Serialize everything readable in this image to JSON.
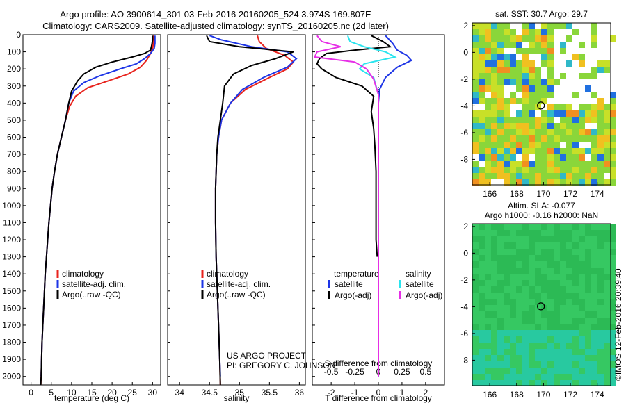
{
  "title_line1": "Argo profile: AO 3900614_301 03-Feb-2016 20160205_524 3.974S 169.807E",
  "title_line2": "Climatology: CARS2009. Satellite-adjusted climatology: synTS_20160205.nc (2d later)",
  "credit_line1": "US ARGO PROJECT",
  "credit_line2": "PI: GREGORY C. JOHNSON",
  "side_label": "©IMOS 12-Feb-2016 20:39:40",
  "colors": {
    "red": "#e8231d",
    "blue": "#1d35e6",
    "black": "#000000",
    "cyan": "#2ae4ee",
    "magenta": "#e62ee6"
  },
  "chart_data": [
    {
      "type": "line",
      "xlabel": "temperature (deg C)",
      "ylabel": "",
      "xlim": [
        -2,
        32
      ],
      "ylim": [
        2050,
        0
      ],
      "xticks": [
        "0",
        "5",
        "10",
        "15",
        "20",
        "25",
        "30"
      ],
      "xtick_values": [
        0,
        5,
        10,
        15,
        20,
        25,
        30
      ],
      "yticks": [
        "0",
        "100",
        "200",
        "300",
        "400",
        "500",
        "600",
        "700",
        "800",
        "900",
        "1000",
        "1100",
        "1200",
        "1300",
        "1400",
        "1500",
        "1600",
        "1700",
        "1800",
        "1900",
        "2000"
      ],
      "ytick_values": [
        0,
        100,
        200,
        300,
        400,
        500,
        600,
        700,
        800,
        900,
        1000,
        1100,
        1200,
        1300,
        1400,
        1500,
        1600,
        1700,
        1800,
        1900,
        2000
      ],
      "legend": [
        "climatology",
        "satellite-adj. clim.",
        "Argo(..raw -QC)"
      ],
      "series": [
        {
          "name": "climatology",
          "color": "red",
          "points": [
            [
              30.3,
              5
            ],
            [
              30.2,
              50
            ],
            [
              30.0,
              80
            ],
            [
              29.5,
              110
            ],
            [
              28.5,
              150
            ],
            [
              27.0,
              190
            ],
            [
              24.0,
              230
            ],
            [
              19.0,
              270
            ],
            [
              14.0,
              310
            ],
            [
              11.0,
              360
            ],
            [
              9.5,
              420
            ],
            [
              8.5,
              500
            ],
            [
              7.5,
              600
            ],
            [
              6.5,
              700
            ],
            [
              5.8,
              800
            ],
            [
              5.2,
              900
            ],
            [
              4.8,
              1000
            ],
            [
              4.4,
              1100
            ],
            [
              4.1,
              1200
            ],
            [
              3.8,
              1300
            ],
            [
              3.5,
              1400
            ],
            [
              3.3,
              1500
            ],
            [
              3.1,
              1600
            ],
            [
              2.9,
              1700
            ],
            [
              2.7,
              1800
            ],
            [
              2.6,
              1900
            ],
            [
              2.5,
              2000
            ],
            [
              2.4,
              2050
            ]
          ]
        },
        {
          "name": "satellite-adj. clim.",
          "color": "blue",
          "points": [
            [
              30.6,
              5
            ],
            [
              30.6,
              50
            ],
            [
              30.4,
              80
            ],
            [
              29.5,
              110
            ],
            [
              28.0,
              140
            ],
            [
              26.0,
              170
            ],
            [
              22.0,
              200
            ],
            [
              17.0,
              240
            ],
            [
              13.0,
              280
            ],
            [
              10.5,
              330
            ],
            [
              9.3,
              400
            ],
            [
              8.5,
              500
            ],
            [
              7.5,
              600
            ],
            [
              6.5,
              700
            ],
            [
              5.8,
              800
            ],
            [
              5.2,
              900
            ],
            [
              4.8,
              1000
            ],
            [
              4.4,
              1100
            ],
            [
              4.1,
              1200
            ],
            [
              3.8,
              1300
            ],
            [
              3.5,
              1400
            ],
            [
              3.3,
              1500
            ],
            [
              3.1,
              1600
            ],
            [
              2.9,
              1700
            ],
            [
              2.7,
              1800
            ],
            [
              2.6,
              1900
            ],
            [
              2.5,
              2000
            ]
          ]
        },
        {
          "name": "Argo(..raw -QC)",
          "color": "black",
          "points": [
            [
              30.0,
              5
            ],
            [
              30.0,
              30
            ],
            [
              29.8,
              60
            ],
            [
              29.5,
              90
            ],
            [
              28.0,
              110
            ],
            [
              25.0,
              130
            ],
            [
              20.0,
              160
            ],
            [
              16.0,
              190
            ],
            [
              13.0,
              230
            ],
            [
              11.5,
              270
            ],
            [
              10.0,
              330
            ],
            [
              9.3,
              400
            ],
            [
              8.5,
              500
            ],
            [
              7.5,
              600
            ],
            [
              6.5,
              700
            ],
            [
              5.8,
              800
            ],
            [
              5.2,
              900
            ],
            [
              4.8,
              1000
            ],
            [
              4.4,
              1100
            ],
            [
              4.1,
              1200
            ],
            [
              3.8,
              1300
            ],
            [
              3.5,
              1400
            ],
            [
              3.3,
              1500
            ],
            [
              3.1,
              1600
            ],
            [
              2.9,
              1700
            ],
            [
              2.7,
              1800
            ],
            [
              2.6,
              1900
            ],
            [
              2.5,
              2000
            ],
            [
              2.4,
              2050
            ]
          ]
        }
      ]
    },
    {
      "type": "line",
      "xlabel": "salinity",
      "ylabel": "",
      "xlim": [
        33.8,
        36.1
      ],
      "ylim": [
        2050,
        0
      ],
      "xticks": [
        "34",
        "34.5",
        "35",
        "35.5",
        "36"
      ],
      "xtick_values": [
        34,
        34.5,
        35,
        35.5,
        36
      ],
      "legend": [
        "climatology",
        "satellite-adj. clim.",
        "Argo(..raw -QC)"
      ],
      "series": [
        {
          "name": "climatology",
          "color": "red",
          "points": [
            [
              35.3,
              5
            ],
            [
              35.33,
              40
            ],
            [
              35.45,
              80
            ],
            [
              35.75,
              120
            ],
            [
              35.9,
              160
            ],
            [
              35.8,
              200
            ],
            [
              35.5,
              250
            ],
            [
              35.1,
              320
            ],
            [
              34.85,
              400
            ],
            [
              34.7,
              500
            ],
            [
              34.65,
              600
            ],
            [
              34.62,
              700
            ],
            [
              34.6,
              900
            ],
            [
              34.6,
              1100
            ],
            [
              34.61,
              1300
            ],
            [
              34.63,
              1500
            ],
            [
              34.65,
              1700
            ],
            [
              34.67,
              1900
            ],
            [
              34.68,
              2050
            ]
          ]
        },
        {
          "name": "satellite-adj. clim.",
          "color": "blue",
          "points": [
            [
              34.5,
              5
            ],
            [
              34.7,
              30
            ],
            [
              35.2,
              70
            ],
            [
              35.8,
              100
            ],
            [
              35.95,
              140
            ],
            [
              35.8,
              190
            ],
            [
              35.4,
              250
            ],
            [
              35.05,
              320
            ],
            [
              34.85,
              400
            ],
            [
              34.7,
              500
            ],
            [
              34.65,
              600
            ],
            [
              34.62,
              700
            ],
            [
              34.6,
              900
            ],
            [
              34.6,
              1100
            ],
            [
              34.61,
              1300
            ],
            [
              34.63,
              1500
            ],
            [
              34.65,
              1700
            ],
            [
              34.67,
              1900
            ],
            [
              34.68,
              2000
            ]
          ]
        },
        {
          "name": "Argo(..raw -QC)",
          "color": "black",
          "points": [
            [
              34.45,
              5
            ],
            [
              34.5,
              40
            ],
            [
              35.0,
              70
            ],
            [
              35.9,
              100
            ],
            [
              35.6,
              140
            ],
            [
              35.2,
              180
            ],
            [
              34.9,
              230
            ],
            [
              34.75,
              300
            ],
            [
              34.72,
              400
            ],
            [
              34.68,
              500
            ],
            [
              34.64,
              600
            ],
            [
              34.62,
              700
            ],
            [
              34.6,
              900
            ],
            [
              34.6,
              1100
            ],
            [
              34.61,
              1300
            ],
            [
              34.63,
              1500
            ],
            [
              34.65,
              1700
            ],
            [
              34.67,
              1900
            ],
            [
              34.68,
              2050
            ]
          ]
        }
      ]
    },
    {
      "type": "line",
      "xlabel": "T difference from climatology",
      "xlabel_top": "S difference from climatology",
      "xlim": [
        -2.8,
        2.8
      ],
      "ylim": [
        2050,
        0
      ],
      "xticks": [
        "-2",
        "-1",
        "0",
        "1",
        "2"
      ],
      "xtick_values": [
        -2,
        -1,
        0,
        1,
        2
      ],
      "xticks_salinity": [
        "-0.5",
        "-0.25",
        "0",
        "0.25",
        "0.5"
      ],
      "xtick_values_salinity": [
        -0.5,
        -0.25,
        0,
        0.25,
        0.5
      ],
      "legend_temperature_title": "temperature",
      "legend_salinity_title": "salinity",
      "legend": [
        "satellite",
        "Argo(-adj)",
        "satellite",
        "Argo(-adj)"
      ],
      "series": [
        {
          "name": "satellite",
          "group": "temperature",
          "color": "blue",
          "points": [
            [
              0.3,
              5
            ],
            [
              0.6,
              50
            ],
            [
              0.8,
              90
            ],
            [
              1.2,
              120
            ],
            [
              1.4,
              150
            ],
            [
              0.8,
              190
            ],
            [
              0.3,
              250
            ],
            [
              0.05,
              320
            ],
            [
              0,
              400
            ],
            [
              0,
              600
            ],
            [
              0,
              800
            ],
            [
              0,
              1000
            ],
            [
              0,
              1200
            ],
            [
              0,
              1400
            ],
            [
              0,
              1600
            ],
            [
              0,
              1800
            ],
            [
              0,
              2000
            ]
          ]
        },
        {
          "name": "Argo(-adj)",
          "group": "temperature",
          "color": "black",
          "points": [
            [
              -0.3,
              5
            ],
            [
              0.2,
              40
            ],
            [
              0.5,
              70
            ],
            [
              -1.0,
              90
            ],
            [
              -2.2,
              110
            ],
            [
              -2.5,
              140
            ],
            [
              -2.6,
              170
            ],
            [
              -2.4,
              200
            ],
            [
              -1.8,
              250
            ],
            [
              -0.7,
              300
            ],
            [
              -0.2,
              360
            ],
            [
              -0.3,
              450
            ],
            [
              -0.2,
              550
            ],
            [
              -0.15,
              650
            ],
            [
              -0.1,
              800
            ],
            [
              -0.1,
              1000
            ],
            [
              -0.1,
              1200
            ],
            [
              -0.05,
              1300
            ]
          ]
        },
        {
          "name": "satellite",
          "group": "salinity",
          "color": "cyan",
          "points": [
            [
              -1.3,
              5
            ],
            [
              -1.2,
              40
            ],
            [
              -0.6,
              70
            ],
            [
              0.3,
              100
            ],
            [
              0.7,
              130
            ],
            [
              -0.6,
              170
            ],
            [
              -0.8,
              200
            ],
            [
              -0.2,
              250
            ],
            [
              0.0,
              350
            ],
            [
              0,
              500
            ],
            [
              0,
              800
            ],
            [
              0,
              1100
            ],
            [
              0,
              1400
            ],
            [
              0,
              1700
            ],
            [
              0,
              2000
            ]
          ]
        },
        {
          "name": "Argo(-adj)",
          "group": "salinity",
          "color": "magenta",
          "points": [
            [
              -2.6,
              5
            ],
            [
              -2.4,
              40
            ],
            [
              -1.6,
              70
            ],
            [
              -2.6,
              100
            ],
            [
              -2.7,
              130
            ],
            [
              -1.0,
              160
            ],
            [
              -0.5,
              200
            ],
            [
              -0.2,
              260
            ],
            [
              0.0,
              350
            ],
            [
              0,
              500
            ],
            [
              0,
              800
            ],
            [
              0,
              1100
            ],
            [
              0,
              1400
            ],
            [
              0,
              1700
            ],
            [
              0,
              2000
            ]
          ]
        }
      ]
    },
    {
      "type": "heatmap",
      "title": "sat. SST: 30.7 Argo: 29.7",
      "xlim": [
        164.7,
        175.0
      ],
      "ylim": [
        -9.9,
        2.2
      ],
      "xticks": [
        "166",
        "168",
        "170",
        "172",
        "174"
      ],
      "xtick_values": [
        166,
        168,
        170,
        172,
        174
      ],
      "yticks": [
        "2",
        "0",
        "-2",
        "-4",
        "-6",
        "-8"
      ],
      "ytick_values": [
        2,
        0,
        -2,
        -4,
        -6,
        -8
      ],
      "marker": [
        169.807,
        -3.974
      ]
    },
    {
      "type": "heatmap",
      "title": "Altim. SLA: -0.077",
      "subtitle": "Argo h1000: -0.16 h2000: NaN",
      "xlim": [
        164.7,
        175.0
      ],
      "ylim": [
        -9.9,
        2.2
      ],
      "xticks": [
        "166",
        "168",
        "170",
        "172",
        "174"
      ],
      "xtick_values": [
        166,
        168,
        170,
        172,
        174
      ],
      "yticks": [
        "2",
        "0",
        "-2",
        "-4",
        "-6",
        "-8"
      ],
      "ytick_values": [
        2,
        0,
        -2,
        -4,
        -6,
        -8
      ],
      "marker": [
        169.807,
        -3.974
      ]
    }
  ]
}
